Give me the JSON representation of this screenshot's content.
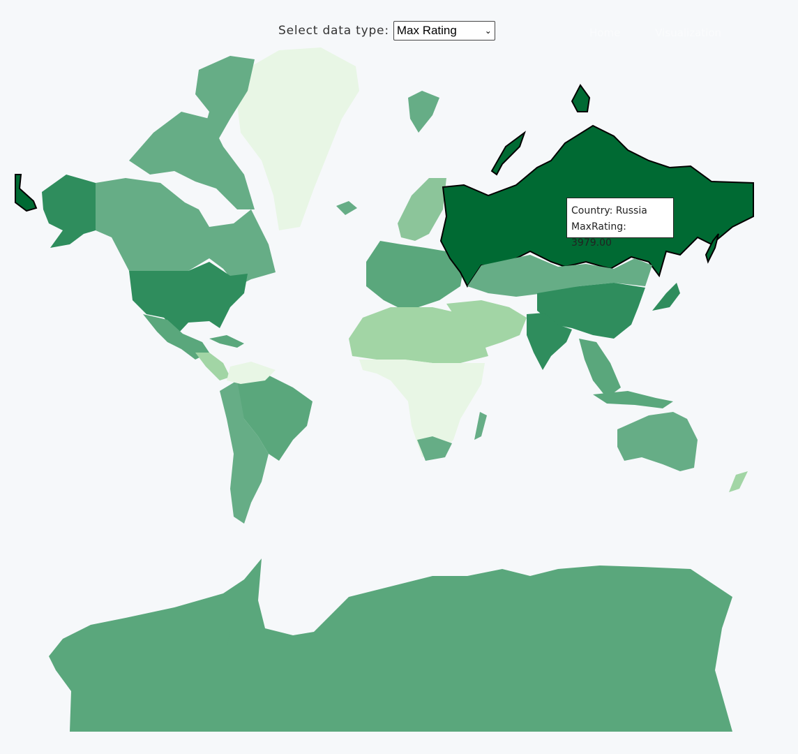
{
  "controls": {
    "label": "Select data type:",
    "selected": "Max Rating",
    "options": [
      "Max Rating"
    ]
  },
  "nav": {
    "items": [
      "Home",
      "Visualization"
    ]
  },
  "map": {
    "metric": "MaxRating",
    "color_scale": [
      "#e8f6e5",
      "#a2d5a5",
      "#5aa77c",
      "#2f8d5d",
      "#006a33"
    ],
    "hovered_country": "Russia"
  },
  "tooltip": {
    "country_line": "Country: Russia",
    "value_line": "MaxRating: 3979.00"
  }
}
